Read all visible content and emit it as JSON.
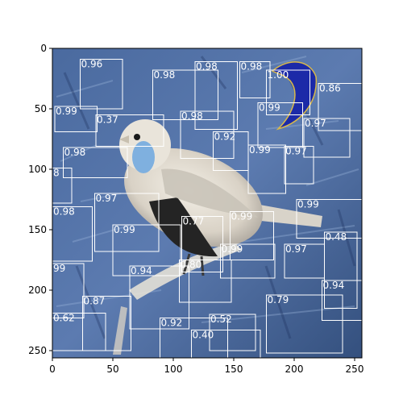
{
  "chart_data": {
    "type": "image_with_detection_boxes",
    "title": "",
    "xlabel": "",
    "ylabel": "",
    "xlim": [
      0,
      256
    ],
    "ylim": [
      256,
      0
    ],
    "x_ticks": [
      0,
      50,
      100,
      150,
      200,
      250
    ],
    "y_ticks": [
      0,
      50,
      100,
      150,
      200,
      250
    ],
    "image_description": "color-inverted photo of a small bird perched on a branch",
    "box_color": "#ffffff",
    "boxes": [
      {
        "label": "0.96",
        "x0": 23,
        "y0": 9,
        "x1": 58,
        "y1": 50
      },
      {
        "label": "0.99",
        "x0": 2,
        "y0": 48,
        "x1": 37,
        "y1": 69
      },
      {
        "label": "0.37",
        "x0": 36,
        "y0": 55,
        "x1": 92,
        "y1": 81
      },
      {
        "label": "0.98",
        "x0": 83,
        "y0": 18,
        "x1": 137,
        "y1": 59
      },
      {
        "label": "0.98",
        "x0": 118,
        "y0": 11,
        "x1": 153,
        "y1": 67
      },
      {
        "label": "0.98",
        "x0": 155,
        "y0": 11,
        "x1": 180,
        "y1": 41
      },
      {
        "label": "1.00",
        "x0": 177,
        "y0": 18,
        "x1": 213,
        "y1": 55
      },
      {
        "label": "0.86",
        "x0": 220,
        "y0": 29,
        "x1": 256,
        "y1": 68
      },
      {
        "label": "0.98",
        "x0": 106,
        "y0": 52,
        "x1": 150,
        "y1": 91
      },
      {
        "label": "0.99",
        "x0": 170,
        "y0": 45,
        "x1": 207,
        "y1": 82
      },
      {
        "label": "0.97",
        "x0": 208,
        "y0": 58,
        "x1": 246,
        "y1": 90
      },
      {
        "label": "0.92",
        "x0": 133,
        "y0": 69,
        "x1": 162,
        "y1": 101
      },
      {
        "label": "0.99",
        "x0": 162,
        "y0": 80,
        "x1": 193,
        "y1": 120
      },
      {
        "label": "0.97",
        "x0": 192,
        "y0": 81,
        "x1": 216,
        "y1": 112
      },
      {
        "label": "0.98",
        "x0": 9,
        "y0": 82,
        "x1": 62,
        "y1": 107
      },
      {
        "label": "8",
        "x0": 0,
        "y0": 99,
        "x1": 16,
        "y1": 128
      },
      {
        "label": "0.97",
        "x0": 35,
        "y0": 120,
        "x1": 88,
        "y1": 168
      },
      {
        "label": "0.98",
        "x0": 0,
        "y0": 131,
        "x1": 33,
        "y1": 176
      },
      {
        "label": "0.99",
        "x0": 50,
        "y0": 146,
        "x1": 106,
        "y1": 188
      },
      {
        "label": "0.77",
        "x0": 107,
        "y0": 139,
        "x1": 141,
        "y1": 185
      },
      {
        "label": "0.99",
        "x0": 147,
        "y0": 135,
        "x1": 183,
        "y1": 175
      },
      {
        "label": "0.99",
        "x0": 202,
        "y0": 125,
        "x1": 256,
        "y1": 157
      },
      {
        "label": "0.48",
        "x0": 225,
        "y0": 152,
        "x1": 252,
        "y1": 215
      },
      {
        "label": "0.99",
        "x0": 139,
        "y0": 162,
        "x1": 184,
        "y1": 190
      },
      {
        "label": "0.97",
        "x0": 192,
        "y0": 162,
        "x1": 225,
        "y1": 190
      },
      {
        "label": "99",
        "x0": 0,
        "y0": 178,
        "x1": 26,
        "y1": 223
      },
      {
        "label": "0.94",
        "x0": 64,
        "y0": 180,
        "x1": 113,
        "y1": 232
      },
      {
        "label": "0.80",
        "x0": 105,
        "y0": 175,
        "x1": 148,
        "y1": 210
      },
      {
        "label": "0.94",
        "x0": 223,
        "y0": 192,
        "x1": 256,
        "y1": 225
      },
      {
        "label": "0.87",
        "x0": 25,
        "y0": 205,
        "x1": 65,
        "y1": 250
      },
      {
        "label": "0.62",
        "x0": 0,
        "y0": 219,
        "x1": 44,
        "y1": 250
      },
      {
        "label": "0.92",
        "x0": 89,
        "y0": 223,
        "x1": 145,
        "y1": 257
      },
      {
        "label": "0.52",
        "x0": 130,
        "y0": 220,
        "x1": 168,
        "y1": 250
      },
      {
        "label": "0.79",
        "x0": 177,
        "y0": 204,
        "x1": 240,
        "y1": 252
      },
      {
        "label": "0.40",
        "x0": 115,
        "y0": 233,
        "x1": 172,
        "y1": 262
      }
    ]
  }
}
